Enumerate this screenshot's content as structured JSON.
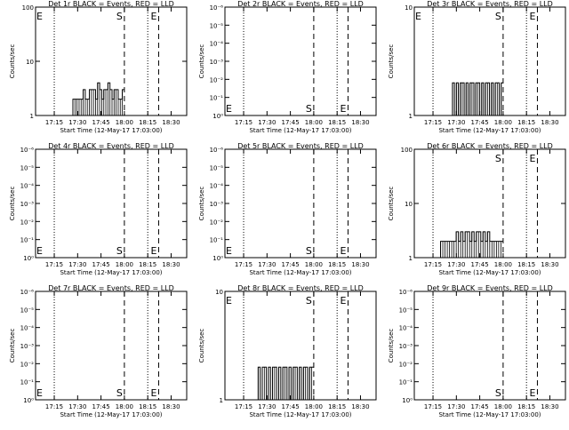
{
  "shared": {
    "xlabel": "Start Time (12-May-17 17:03:00)",
    "ylabel": "Counts/sec",
    "x_ticks": [
      "17:15",
      "17:30",
      "17:45",
      "18:00",
      "18:15",
      "18:30"
    ],
    "markers": {
      "dotted_left": "17:15",
      "dashed_S": "18:00",
      "dotted_right": "18:15",
      "dashed_E": "18:22"
    },
    "colors": {
      "events": "#000000",
      "lld": "#ff0000",
      "background": "#ffffff"
    }
  },
  "chart_data": [
    {
      "type": "line",
      "title": "Det 1r BLACK = Events, RED = LLD",
      "yscale": "log",
      "ylim": [
        1,
        100
      ],
      "y_ticks": [
        "1",
        "10",
        "100"
      ],
      "series": [
        {
          "name": "Events",
          "x_range": [
            "17:23",
            "18:00"
          ],
          "values": [
            1,
            1,
            1,
            2,
            2,
            2,
            2,
            2,
            3,
            2,
            2,
            3,
            3,
            3,
            2,
            4,
            3,
            2,
            3,
            3,
            4,
            3,
            2,
            3,
            3,
            2,
            2,
            3
          ]
        }
      ],
      "annotations": [
        {
          "text": "E",
          "at": "top-left"
        },
        {
          "text": "S",
          "at": "top"
        },
        {
          "text": "E",
          "at": "top"
        }
      ]
    },
    {
      "type": "line",
      "title": "Det 2r BLACK = Events, RED = LLD",
      "yscale": "log",
      "ylim": [
        1,
        1e-06
      ],
      "y_ticks": [
        "10⁰",
        "10⁻¹",
        "10⁻²",
        "10⁻³",
        "10⁻⁴",
        "10⁻⁵",
        "10⁻⁶"
      ],
      "series": [],
      "annotations": [
        {
          "text": "E",
          "at": "bottom-left"
        },
        {
          "text": "S",
          "at": "bottom"
        },
        {
          "text": "E",
          "at": "bottom"
        }
      ]
    },
    {
      "type": "line",
      "title": "Det 3r BLACK = Events, RED = LLD",
      "yscale": "log",
      "ylim": [
        1,
        10
      ],
      "y_ticks": [
        "1",
        "10"
      ],
      "series": [
        {
          "name": "Events",
          "x_range": [
            "17:25",
            "18:00"
          ],
          "values": [
            1,
            1,
            2,
            1,
            2,
            1,
            2,
            2,
            1,
            2,
            1,
            2,
            2,
            1,
            2,
            2,
            1,
            2,
            1,
            2,
            2,
            1,
            2,
            1,
            2,
            2,
            1,
            2
          ]
        }
      ],
      "annotations": [
        {
          "text": "E",
          "at": "top-left"
        },
        {
          "text": "S",
          "at": "top"
        },
        {
          "text": "E",
          "at": "top"
        }
      ]
    },
    {
      "type": "line",
      "title": "Det 4r BLACK = Events, RED = LLD",
      "yscale": "log",
      "ylim": [
        1,
        1e-06
      ],
      "y_ticks": [
        "10⁰",
        "10⁻¹",
        "10⁻²",
        "10⁻³",
        "10⁻⁴",
        "10⁻⁵",
        "10⁻⁶"
      ],
      "series": [],
      "annotations": [
        {
          "text": "E",
          "at": "bottom-left"
        },
        {
          "text": "S",
          "at": "bottom"
        },
        {
          "text": "E",
          "at": "bottom"
        }
      ]
    },
    {
      "type": "line",
      "title": "Det 5r BLACK = Events, RED = LLD",
      "yscale": "log",
      "ylim": [
        1,
        1e-06
      ],
      "y_ticks": [
        "10⁰",
        "10⁻¹",
        "10⁻²",
        "10⁻³",
        "10⁻⁴",
        "10⁻⁵",
        "10⁻⁶"
      ],
      "series": [],
      "annotations": [
        {
          "text": "E",
          "at": "bottom-left"
        },
        {
          "text": "S",
          "at": "bottom"
        },
        {
          "text": "E",
          "at": "bottom"
        }
      ]
    },
    {
      "type": "line",
      "title": "Det 6r BLACK = Events, RED = LLD",
      "yscale": "log",
      "ylim": [
        1,
        100
      ],
      "y_ticks": [
        "1",
        "10",
        "100"
      ],
      "series": [
        {
          "name": "Events",
          "x_range": [
            "17:17",
            "18:00"
          ],
          "values": [
            1,
            1,
            2,
            2,
            2,
            2,
            2,
            2,
            2,
            3,
            2,
            3,
            2,
            3,
            3,
            2,
            3,
            2,
            3,
            3,
            2,
            3,
            2,
            3,
            2,
            2,
            2,
            2,
            2,
            2
          ]
        }
      ],
      "annotations": [
        {
          "text": "S",
          "at": "top"
        },
        {
          "text": "E",
          "at": "top"
        }
      ]
    },
    {
      "type": "line",
      "title": "Det 7r BLACK = Events, RED = LLD",
      "yscale": "log",
      "ylim": [
        1,
        1e-06
      ],
      "y_ticks": [
        "10⁰",
        "10⁻¹",
        "10⁻²",
        "10⁻³",
        "10⁻⁴",
        "10⁻⁵",
        "10⁻⁶"
      ],
      "series": [],
      "annotations": [
        {
          "text": "E",
          "at": "bottom-left"
        },
        {
          "text": "S",
          "at": "bottom"
        },
        {
          "text": "E",
          "at": "bottom"
        }
      ]
    },
    {
      "type": "line",
      "title": "Det 8r BLACK = Events, RED = LLD",
      "yscale": "log",
      "ylim": [
        1,
        10
      ],
      "y_ticks": [
        "1",
        "10"
      ],
      "series": [
        {
          "name": "Events",
          "x_range": [
            "17:23",
            "18:00"
          ],
          "values": [
            1,
            2,
            1,
            2,
            2,
            1,
            2,
            1,
            2,
            2,
            1,
            2,
            1,
            2,
            2,
            1,
            2,
            1,
            2,
            2,
            1,
            2,
            1,
            2,
            2,
            1,
            2,
            2
          ]
        }
      ],
      "annotations": [
        {
          "text": "E",
          "at": "top-left"
        },
        {
          "text": "S",
          "at": "top"
        },
        {
          "text": "E",
          "at": "top"
        }
      ]
    },
    {
      "type": "line",
      "title": "Det 9r BLACK = Events, RED = LLD",
      "yscale": "log",
      "ylim": [
        1,
        1e-06
      ],
      "y_ticks": [
        "10⁰",
        "10⁻¹",
        "10⁻²",
        "10⁻³",
        "10⁻⁴",
        "10⁻⁵",
        "10⁻⁶"
      ],
      "series": [],
      "annotations": [
        {
          "text": "S",
          "at": "bottom"
        },
        {
          "text": "E",
          "at": "bottom"
        }
      ]
    }
  ]
}
